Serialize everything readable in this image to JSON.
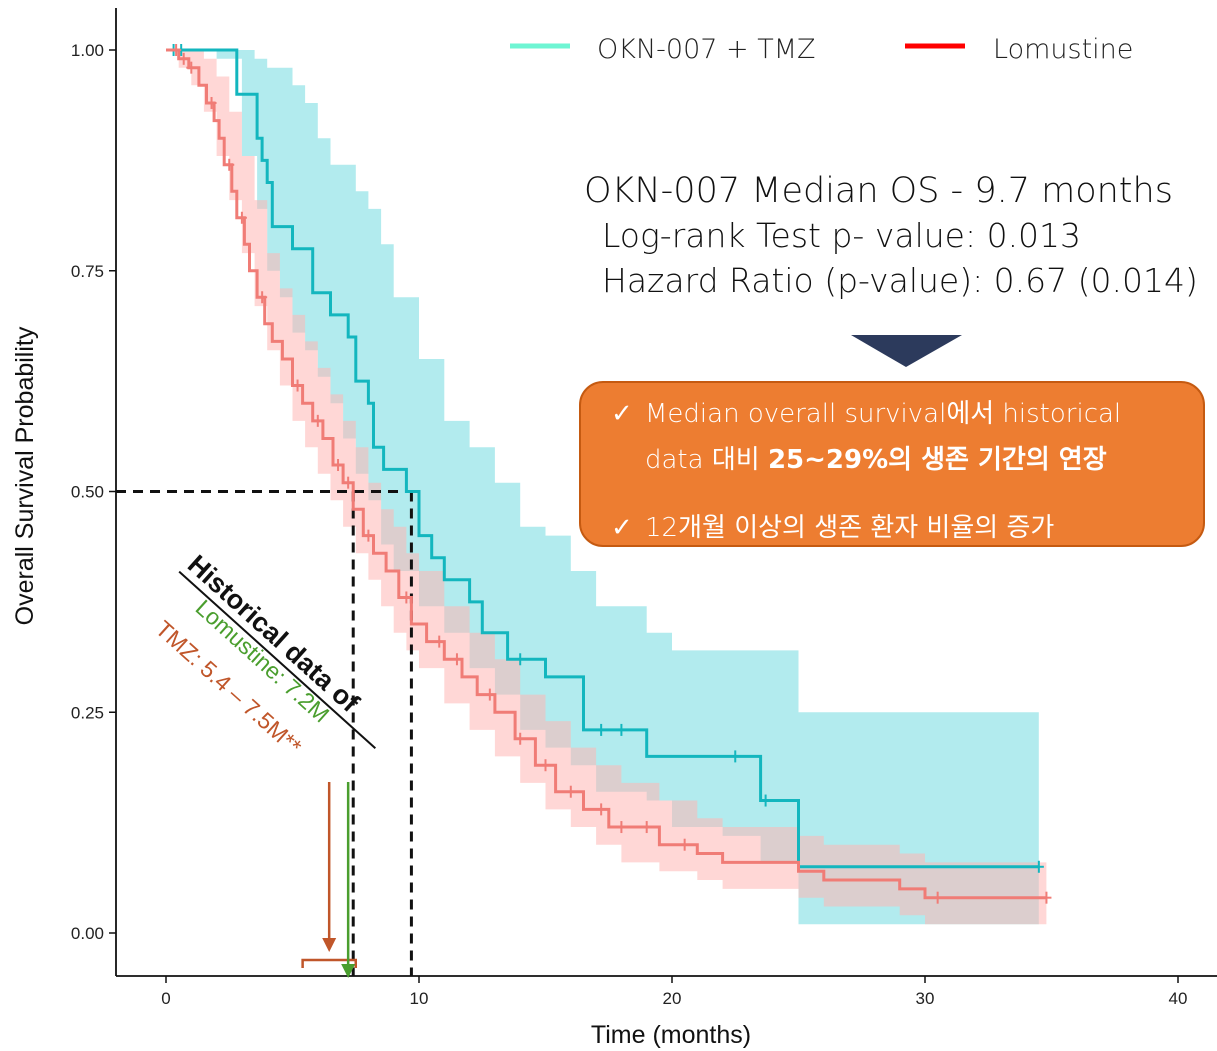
{
  "chart_data": {
    "type": "line",
    "xlabel": "Time (months)",
    "ylabel": "Overall Survival Probability",
    "xlim": [
      -2,
      41
    ],
    "ylim": [
      -0.05,
      1.05
    ],
    "x_ticks": [
      0,
      10,
      20,
      30,
      40
    ],
    "y_ticks": [
      1.0,
      0.75,
      0.5,
      0.25,
      0.0
    ],
    "y_tick_labels": [
      "1.00",
      "0.75",
      "0.50",
      "0.25",
      "0.00"
    ],
    "legend_position": "top-right",
    "series": [
      {
        "name": "OKN-007 + TMZ",
        "color": "#13B6BE",
        "legend_color": "#6EF5D3",
        "band_color": "#7FDDE2",
        "steps": [
          [
            0,
            1.0
          ],
          [
            2.8,
            1.0
          ],
          [
            2.8,
            0.95
          ],
          [
            3.6,
            0.95
          ],
          [
            3.6,
            0.9
          ],
          [
            3.8,
            0.9
          ],
          [
            3.8,
            0.875
          ],
          [
            4,
            0.875
          ],
          [
            4,
            0.85
          ],
          [
            4.2,
            0.85
          ],
          [
            4.2,
            0.8
          ],
          [
            5,
            0.8
          ],
          [
            5,
            0.775
          ],
          [
            5.8,
            0.775
          ],
          [
            5.8,
            0.725
          ],
          [
            6.5,
            0.725
          ],
          [
            6.5,
            0.7
          ],
          [
            7.2,
            0.7
          ],
          [
            7.2,
            0.675
          ],
          [
            7.5,
            0.675
          ],
          [
            7.5,
            0.625
          ],
          [
            8,
            0.625
          ],
          [
            8,
            0.6
          ],
          [
            8.2,
            0.6
          ],
          [
            8.2,
            0.55
          ],
          [
            8.6,
            0.55
          ],
          [
            8.6,
            0.525
          ],
          [
            9.5,
            0.525
          ],
          [
            9.5,
            0.5
          ],
          [
            10,
            0.5
          ],
          [
            10,
            0.45
          ],
          [
            10.5,
            0.45
          ],
          [
            10.5,
            0.425
          ],
          [
            11,
            0.425
          ],
          [
            11,
            0.4
          ],
          [
            12,
            0.4
          ],
          [
            12,
            0.375
          ],
          [
            12.5,
            0.375
          ],
          [
            12.5,
            0.34
          ],
          [
            13.5,
            0.34
          ],
          [
            13.5,
            0.31
          ],
          [
            15,
            0.31
          ],
          [
            15,
            0.29
          ],
          [
            16.5,
            0.29
          ],
          [
            16.5,
            0.23
          ],
          [
            19,
            0.23
          ],
          [
            19,
            0.2
          ],
          [
            23.5,
            0.2
          ],
          [
            23.5,
            0.15
          ],
          [
            25,
            0.15
          ],
          [
            25,
            0.075
          ],
          [
            34.5,
            0.075
          ]
        ],
        "censored": [
          [
            0.3,
            1.0
          ],
          [
            0.6,
            1.0
          ],
          [
            14,
            0.31
          ],
          [
            17.2,
            0.23
          ],
          [
            18,
            0.23
          ],
          [
            22.5,
            0.2
          ],
          [
            23.7,
            0.15
          ],
          [
            34.5,
            0.075
          ]
        ],
        "band_upper": [
          [
            0,
            1.0
          ],
          [
            3,
            1.0
          ],
          [
            3.5,
            0.99
          ],
          [
            4,
            0.98
          ],
          [
            5,
            0.96
          ],
          [
            5.5,
            0.94
          ],
          [
            6,
            0.9
          ],
          [
            6.5,
            0.87
          ],
          [
            7.5,
            0.84
          ],
          [
            8,
            0.82
          ],
          [
            8.5,
            0.78
          ],
          [
            9,
            0.72
          ],
          [
            10,
            0.65
          ],
          [
            11,
            0.58
          ],
          [
            12,
            0.55
          ],
          [
            13,
            0.51
          ],
          [
            14,
            0.46
          ],
          [
            15,
            0.45
          ],
          [
            16,
            0.41
          ],
          [
            17,
            0.37
          ],
          [
            19,
            0.34
          ],
          [
            20,
            0.32
          ],
          [
            23,
            0.32
          ],
          [
            25,
            0.25
          ],
          [
            34.5,
            0.25
          ]
        ],
        "band_lower": [
          [
            0,
            1.0
          ],
          [
            2,
            0.99
          ],
          [
            3,
            0.88
          ],
          [
            3.6,
            0.82
          ],
          [
            4,
            0.75
          ],
          [
            4.5,
            0.72
          ],
          [
            5,
            0.68
          ],
          [
            5.5,
            0.66
          ],
          [
            6,
            0.63
          ],
          [
            6.5,
            0.6
          ],
          [
            7,
            0.56
          ],
          [
            7.5,
            0.52
          ],
          [
            8,
            0.49
          ],
          [
            8.5,
            0.44
          ],
          [
            9,
            0.41
          ],
          [
            10,
            0.37
          ],
          [
            11,
            0.34
          ],
          [
            12,
            0.3
          ],
          [
            13,
            0.27
          ],
          [
            14,
            0.23
          ],
          [
            15,
            0.21
          ],
          [
            16,
            0.19
          ],
          [
            17,
            0.16
          ],
          [
            19,
            0.15
          ],
          [
            20,
            0.12
          ],
          [
            22,
            0.11
          ],
          [
            23.5,
            0.08
          ],
          [
            25,
            0.01
          ],
          [
            34.5,
            0.01
          ]
        ]
      },
      {
        "name": "Lomustine",
        "color": "#F07C76",
        "legend_color": "#FF0000",
        "band_color": "#FFB6B4",
        "steps": [
          [
            0,
            1.0
          ],
          [
            0.5,
            1.0
          ],
          [
            0.5,
            0.99
          ],
          [
            0.9,
            0.99
          ],
          [
            0.9,
            0.98
          ],
          [
            1.3,
            0.98
          ],
          [
            1.3,
            0.96
          ],
          [
            1.6,
            0.96
          ],
          [
            1.6,
            0.94
          ],
          [
            1.9,
            0.94
          ],
          [
            1.9,
            0.92
          ],
          [
            2.1,
            0.92
          ],
          [
            2.1,
            0.9
          ],
          [
            2.3,
            0.9
          ],
          [
            2.3,
            0.87
          ],
          [
            2.6,
            0.87
          ],
          [
            2.6,
            0.84
          ],
          [
            2.8,
            0.84
          ],
          [
            2.8,
            0.81
          ],
          [
            3.1,
            0.81
          ],
          [
            3.1,
            0.78
          ],
          [
            3.3,
            0.78
          ],
          [
            3.3,
            0.75
          ],
          [
            3.6,
            0.75
          ],
          [
            3.6,
            0.72
          ],
          [
            3.9,
            0.72
          ],
          [
            3.9,
            0.69
          ],
          [
            4.2,
            0.69
          ],
          [
            4.2,
            0.67
          ],
          [
            4.6,
            0.67
          ],
          [
            4.6,
            0.65
          ],
          [
            5,
            0.65
          ],
          [
            5,
            0.62
          ],
          [
            5.4,
            0.62
          ],
          [
            5.4,
            0.6
          ],
          [
            5.8,
            0.6
          ],
          [
            5.8,
            0.58
          ],
          [
            6.2,
            0.58
          ],
          [
            6.2,
            0.56
          ],
          [
            6.6,
            0.56
          ],
          [
            6.6,
            0.53
          ],
          [
            7,
            0.53
          ],
          [
            7,
            0.51
          ],
          [
            7.4,
            0.51
          ],
          [
            7.4,
            0.48
          ],
          [
            7.8,
            0.48
          ],
          [
            7.8,
            0.45
          ],
          [
            8.2,
            0.45
          ],
          [
            8.2,
            0.43
          ],
          [
            8.7,
            0.43
          ],
          [
            8.7,
            0.41
          ],
          [
            9.2,
            0.41
          ],
          [
            9.2,
            0.38
          ],
          [
            9.7,
            0.38
          ],
          [
            9.7,
            0.35
          ],
          [
            10.3,
            0.35
          ],
          [
            10.3,
            0.33
          ],
          [
            11,
            0.33
          ],
          [
            11,
            0.31
          ],
          [
            11.7,
            0.31
          ],
          [
            11.7,
            0.29
          ],
          [
            12.3,
            0.29
          ],
          [
            12.3,
            0.27
          ],
          [
            13,
            0.27
          ],
          [
            13,
            0.25
          ],
          [
            13.8,
            0.25
          ],
          [
            13.8,
            0.22
          ],
          [
            14.6,
            0.22
          ],
          [
            14.6,
            0.19
          ],
          [
            15.4,
            0.19
          ],
          [
            15.4,
            0.16
          ],
          [
            16.5,
            0.16
          ],
          [
            16.5,
            0.14
          ],
          [
            17.5,
            0.14
          ],
          [
            17.5,
            0.12
          ],
          [
            19.5,
            0.12
          ],
          [
            19.5,
            0.1
          ],
          [
            21,
            0.1
          ],
          [
            21,
            0.09
          ],
          [
            22,
            0.09
          ],
          [
            22,
            0.08
          ],
          [
            25,
            0.08
          ],
          [
            25,
            0.07
          ],
          [
            26,
            0.07
          ],
          [
            26,
            0.06
          ],
          [
            29,
            0.06
          ],
          [
            29,
            0.05
          ],
          [
            30,
            0.05
          ],
          [
            30,
            0.04
          ],
          [
            34.8,
            0.04
          ]
        ],
        "censored": [
          [
            0.4,
            1.0
          ],
          [
            0.7,
            0.99
          ],
          [
            1.0,
            0.98
          ],
          [
            1.8,
            0.94
          ],
          [
            2.5,
            0.87
          ],
          [
            3.0,
            0.81
          ],
          [
            3.8,
            0.72
          ],
          [
            5.2,
            0.62
          ],
          [
            6.0,
            0.58
          ],
          [
            6.8,
            0.53
          ],
          [
            7.2,
            0.51
          ],
          [
            8.0,
            0.45
          ],
          [
            9.5,
            0.38
          ],
          [
            10.8,
            0.33
          ],
          [
            11.5,
            0.31
          ],
          [
            12.8,
            0.27
          ],
          [
            14.0,
            0.22
          ],
          [
            15.0,
            0.19
          ],
          [
            16.0,
            0.16
          ],
          [
            17.2,
            0.14
          ],
          [
            18.0,
            0.12
          ],
          [
            19.0,
            0.12
          ],
          [
            20.5,
            0.1
          ],
          [
            30.5,
            0.04
          ],
          [
            34.8,
            0.04
          ]
        ],
        "band_upper": [
          [
            0,
            1.0
          ],
          [
            1,
            1.0
          ],
          [
            1.5,
            0.99
          ],
          [
            2,
            0.97
          ],
          [
            2.5,
            0.93
          ],
          [
            3,
            0.88
          ],
          [
            3.5,
            0.83
          ],
          [
            4,
            0.77
          ],
          [
            4.5,
            0.73
          ],
          [
            5,
            0.7
          ],
          [
            5.5,
            0.67
          ],
          [
            6,
            0.64
          ],
          [
            6.5,
            0.61
          ],
          [
            7,
            0.58
          ],
          [
            7.5,
            0.55
          ],
          [
            8,
            0.51
          ],
          [
            8.5,
            0.48
          ],
          [
            9,
            0.46
          ],
          [
            9.5,
            0.43
          ],
          [
            10,
            0.41
          ],
          [
            11,
            0.37
          ],
          [
            12,
            0.34
          ],
          [
            13,
            0.31
          ],
          [
            14,
            0.27
          ],
          [
            15,
            0.24
          ],
          [
            16,
            0.21
          ],
          [
            17,
            0.19
          ],
          [
            18,
            0.17
          ],
          [
            19.5,
            0.15
          ],
          [
            21,
            0.13
          ],
          [
            22,
            0.12
          ],
          [
            25,
            0.11
          ],
          [
            26,
            0.1
          ],
          [
            29,
            0.09
          ],
          [
            30,
            0.08
          ],
          [
            34.8,
            0.08
          ]
        ],
        "band_lower": [
          [
            0,
            1.0
          ],
          [
            0.5,
            0.98
          ],
          [
            1,
            0.96
          ],
          [
            1.5,
            0.93
          ],
          [
            2,
            0.88
          ],
          [
            2.5,
            0.83
          ],
          [
            3,
            0.77
          ],
          [
            3.5,
            0.71
          ],
          [
            4,
            0.66
          ],
          [
            4.5,
            0.62
          ],
          [
            5,
            0.58
          ],
          [
            5.5,
            0.55
          ],
          [
            6,
            0.52
          ],
          [
            6.5,
            0.49
          ],
          [
            7,
            0.46
          ],
          [
            7.5,
            0.43
          ],
          [
            8,
            0.4
          ],
          [
            8.5,
            0.37
          ],
          [
            9,
            0.34
          ],
          [
            9.5,
            0.32
          ],
          [
            10,
            0.3
          ],
          [
            11,
            0.26
          ],
          [
            12,
            0.23
          ],
          [
            13,
            0.2
          ],
          [
            14,
            0.17
          ],
          [
            15,
            0.14
          ],
          [
            16,
            0.12
          ],
          [
            17,
            0.1
          ],
          [
            18,
            0.08
          ],
          [
            19.5,
            0.07
          ],
          [
            21,
            0.06
          ],
          [
            22,
            0.05
          ],
          [
            25,
            0.04
          ],
          [
            26,
            0.03
          ],
          [
            29,
            0.02
          ],
          [
            30,
            0.01
          ],
          [
            34.8,
            0.0
          ]
        ]
      }
    ],
    "median_lines": [
      {
        "x": 7.4,
        "y": 0.5
      },
      {
        "x": 9.7,
        "y": 0.5
      }
    ],
    "historical": {
      "title": "Historical data of",
      "lomustine_text": "Lomustine: 7.2M",
      "lomustine_color": "#4A9E2E",
      "lomustine_x": 7.2,
      "tmz_text": "TMZ: 5.4 – 7.5M**",
      "tmz_color": "#C0562A",
      "tmz_range": [
        5.4,
        7.5
      ]
    }
  },
  "stats": {
    "line1": "OKN-007 Median OS - 9.7 months",
    "line2": "Log-rank Test p- value: 0.013",
    "line3": "Hazard Ratio (p-value): 0.67 (0.014)"
  },
  "arrow_color": "#2C3A5C",
  "callout": {
    "check": "✓",
    "item1_a": "Median overall survival에서 historical",
    "item1_b_prefix": "data 대비 ",
    "item1_b_strong": "25~29%의 생존 기간의 연장",
    "item2": "12개월 이상의 생존 환자 비율의 증가",
    "bg_color": "#ED7D31"
  }
}
